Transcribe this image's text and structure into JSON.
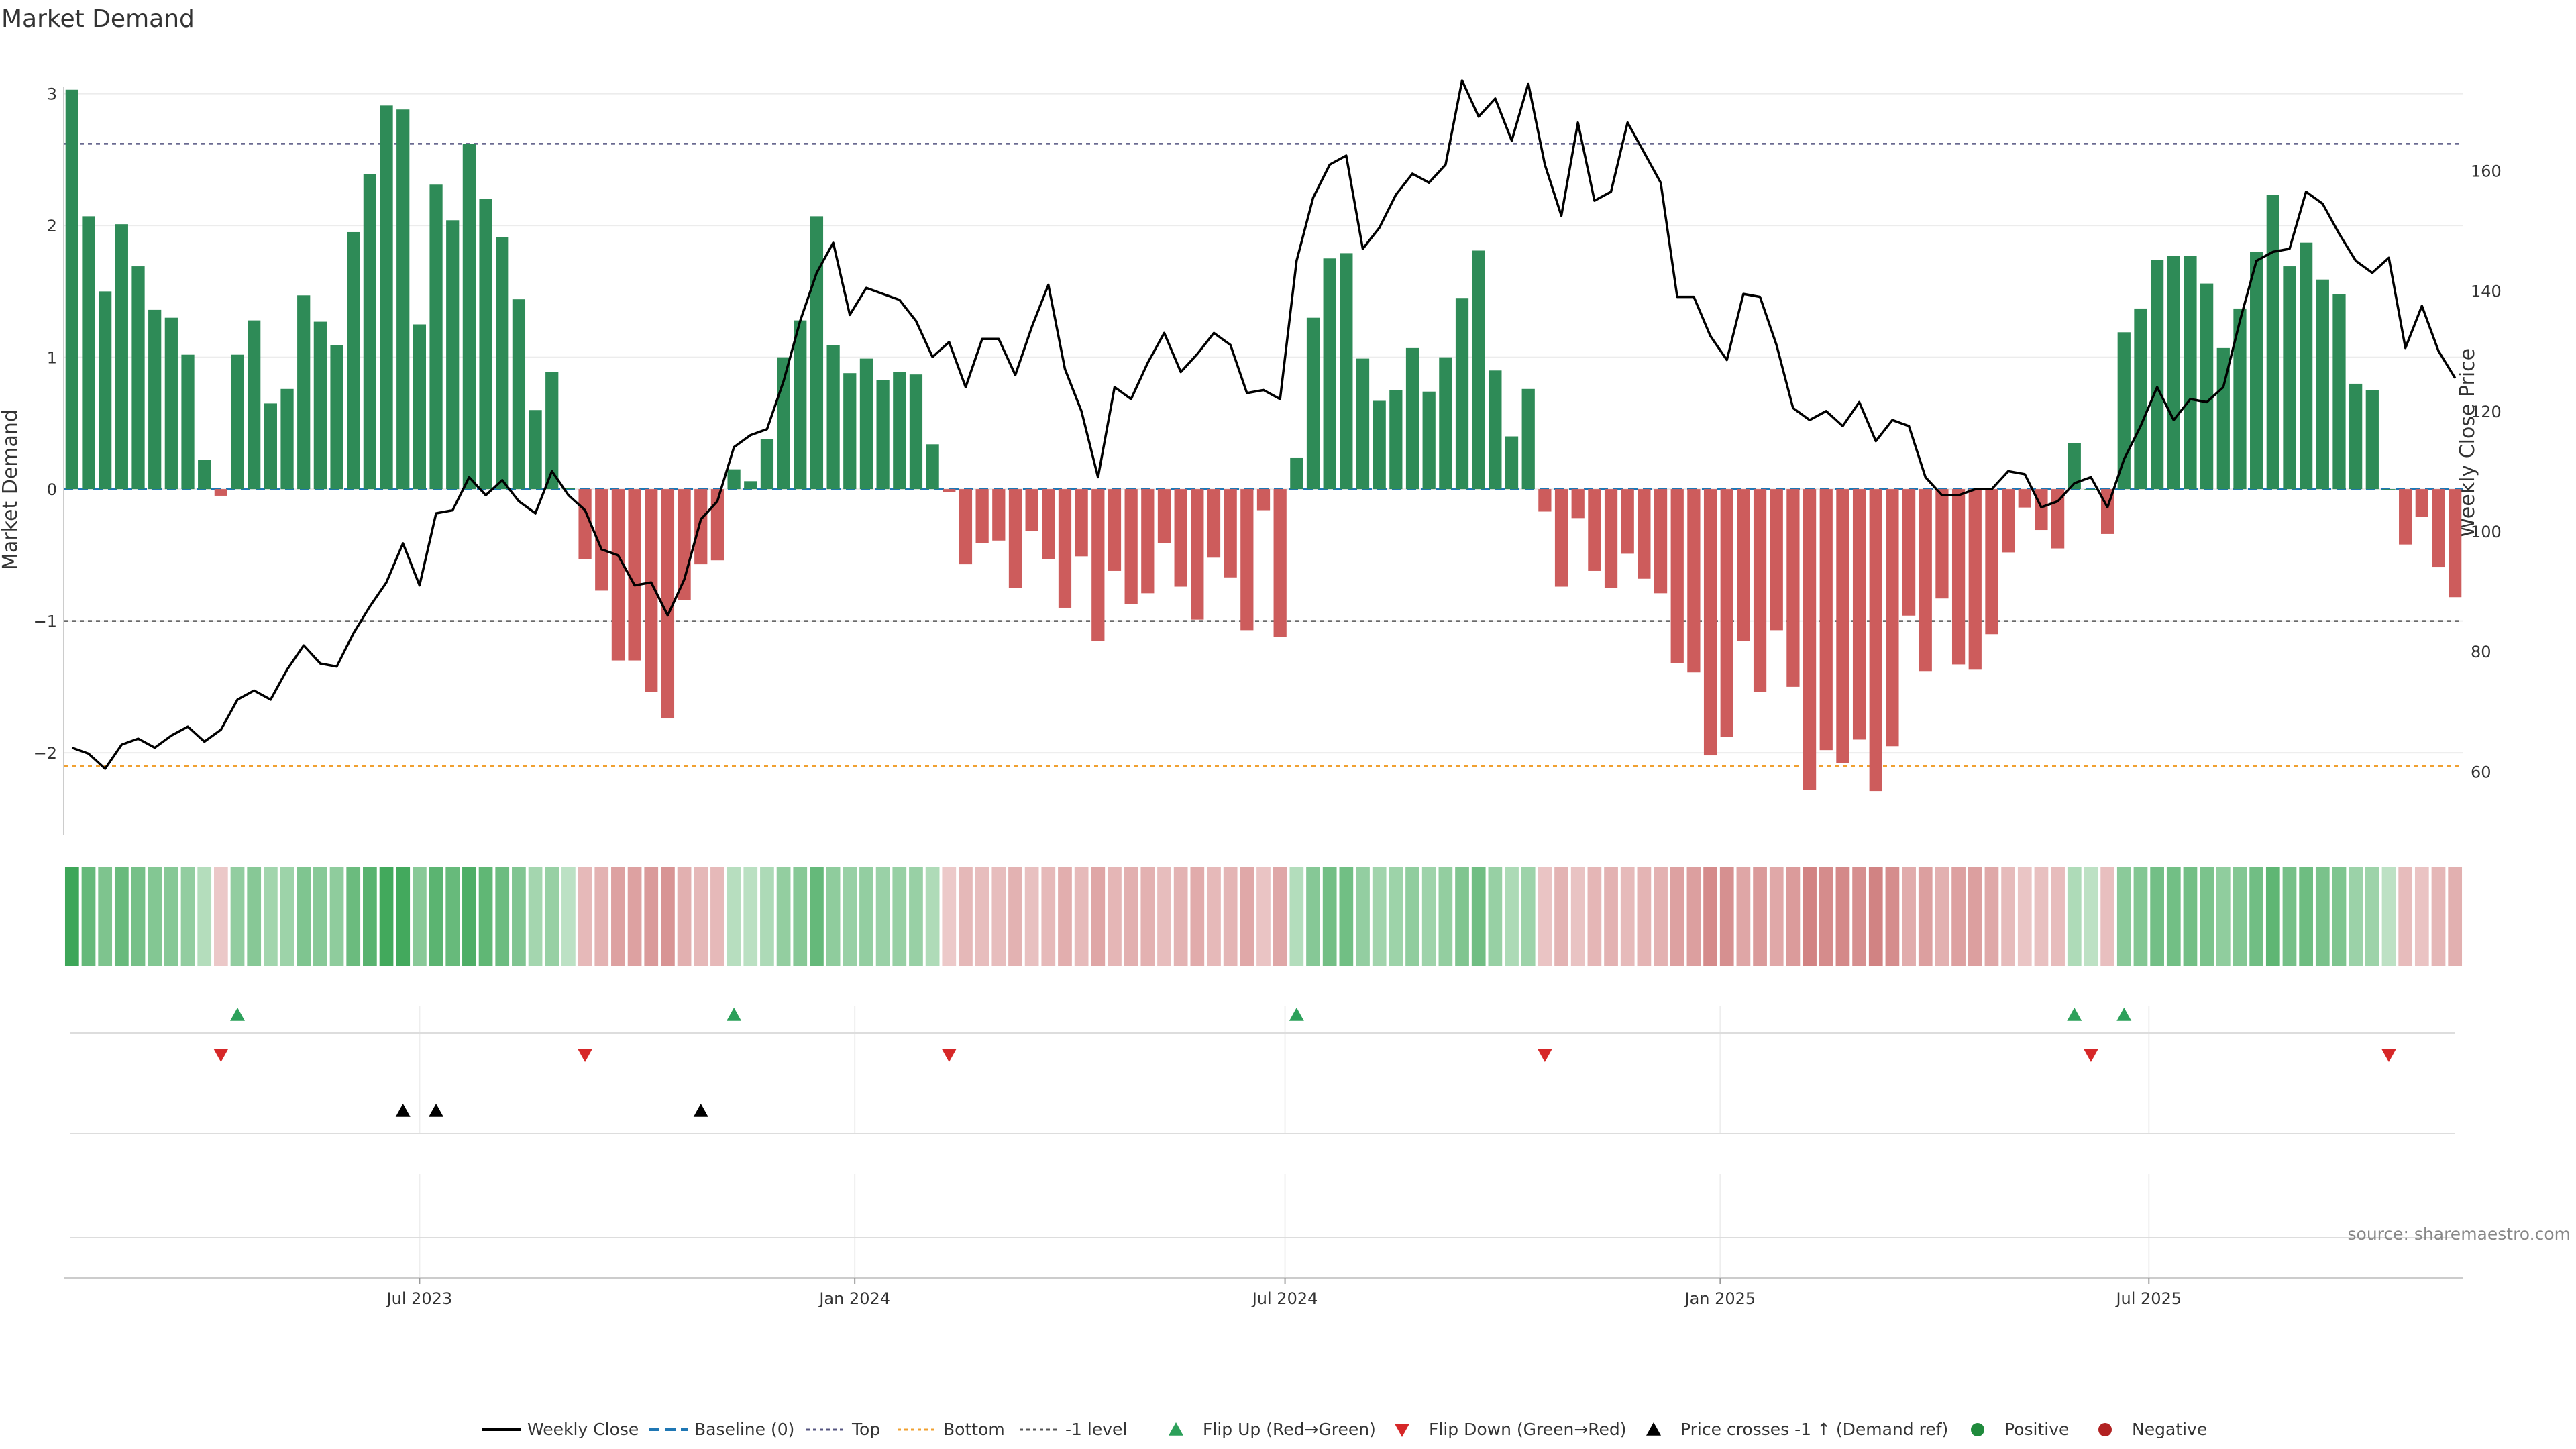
{
  "chart_data": {
    "type": "bar",
    "title": "Market Demand",
    "ylabel": "Market Demand",
    "y2label": "Weekly Close Price",
    "ylim": [
      -2.6,
      3.1
    ],
    "y2lim": [
      50,
      175
    ],
    "y_ticks": [
      -2,
      -1,
      0,
      1,
      2,
      3
    ],
    "y_tick_labels": [
      "−2",
      "−1",
      "0",
      "1",
      "2",
      "3"
    ],
    "y2_ticks": [
      60,
      80,
      100,
      120,
      140,
      160
    ],
    "y2_tick_labels": [
      "60",
      "80",
      "100",
      "120",
      "140",
      "160"
    ],
    "grid": true,
    "x_ticks": [
      {
        "index": 21.5,
        "label": "Jul 2023"
      },
      {
        "index": 47.8,
        "label": "Jan 2024"
      },
      {
        "index": 73.8,
        "label": "Jul 2024"
      },
      {
        "index": 100.1,
        "label": "Jan 2025"
      },
      {
        "index": 126.0,
        "label": "Jul 2025"
      }
    ],
    "reference_lines": {
      "top": 2.62,
      "bottom": -2.1,
      "minus_one": -1.0,
      "baseline": 0
    },
    "demand": [
      3.03,
      2.07,
      1.5,
      2.01,
      1.69,
      1.36,
      1.3,
      1.02,
      0.22,
      -0.05,
      1.02,
      1.28,
      0.65,
      0.76,
      1.47,
      1.27,
      1.09,
      1.95,
      2.39,
      2.91,
      2.88,
      1.25,
      2.31,
      2.04,
      2.62,
      2.2,
      1.91,
      1.44,
      0.6,
      0.89,
      0.01,
      -0.53,
      -0.77,
      -1.3,
      -1.3,
      -1.54,
      -1.74,
      -0.84,
      -0.57,
      -0.54,
      0.15,
      0.06,
      0.38,
      1.0,
      1.28,
      2.07,
      1.09,
      0.88,
      0.99,
      0.83,
      0.89,
      0.87,
      0.34,
      -0.02,
      -0.57,
      -0.41,
      -0.39,
      -0.75,
      -0.32,
      -0.53,
      -0.9,
      -0.51,
      -1.15,
      -0.62,
      -0.87,
      -0.79,
      -0.41,
      -0.74,
      -0.99,
      -0.52,
      -0.67,
      -1.07,
      -0.16,
      -1.12,
      0.24,
      1.3,
      1.75,
      1.79,
      0.99,
      0.67,
      0.75,
      1.07,
      0.74,
      1.0,
      1.45,
      1.81,
      0.9,
      0.4,
      0.76,
      -0.17,
      -0.74,
      -0.22,
      -0.62,
      -0.75,
      -0.49,
      -0.68,
      -0.79,
      -1.32,
      -1.39,
      -2.02,
      -1.88,
      -1.15,
      -1.54,
      -1.07,
      -1.5,
      -2.28,
      -1.98,
      -2.08,
      -1.9,
      -2.29,
      -1.95,
      -0.96,
      -1.38,
      -0.83,
      -1.33,
      -1.37,
      -1.1,
      -0.48,
      -0.14,
      -0.31,
      -0.45,
      0.35,
      0.0,
      -0.34,
      1.19,
      1.37,
      1.74,
      1.77,
      1.77,
      1.56,
      1.07,
      1.37,
      1.8,
      2.23,
      1.69,
      1.87,
      1.59,
      1.48,
      0.8,
      0.75,
      0.0,
      -0.42,
      -0.21,
      -0.59,
      -0.82
    ],
    "weekly_close": [
      [
        0,
        64
      ],
      [
        1,
        63
      ],
      [
        2,
        60.5
      ],
      [
        3,
        64.5
      ],
      [
        4,
        65.5
      ],
      [
        5,
        64
      ],
      [
        6,
        66
      ],
      [
        7,
        67.5
      ],
      [
        8,
        65
      ],
      [
        9,
        67
      ],
      [
        10,
        72
      ],
      [
        11,
        73.5
      ],
      [
        12,
        72
      ],
      [
        13,
        77
      ],
      [
        14,
        81
      ],
      [
        15,
        78
      ],
      [
        16,
        77.5
      ],
      [
        17,
        83
      ],
      [
        18,
        87.5
      ],
      [
        19,
        91.5
      ],
      [
        20,
        98
      ],
      [
        21,
        91
      ],
      [
        22,
        103
      ],
      [
        23,
        103.5
      ],
      [
        24,
        109
      ],
      [
        25,
        106
      ],
      [
        26,
        108.5
      ],
      [
        27,
        105
      ],
      [
        28,
        103
      ],
      [
        29,
        110
      ],
      [
        30,
        106
      ],
      [
        31,
        103.5
      ],
      [
        32,
        97
      ],
      [
        33,
        96
      ],
      [
        34,
        91
      ],
      [
        35,
        91.5
      ],
      [
        36,
        86
      ],
      [
        37,
        92
      ],
      [
        38,
        102
      ],
      [
        39,
        105
      ],
      [
        40,
        114
      ],
      [
        41,
        116
      ],
      [
        42,
        117
      ],
      [
        43,
        125
      ],
      [
        44,
        135
      ],
      [
        45,
        143
      ],
      [
        46,
        148
      ],
      [
        47,
        136
      ],
      [
        48,
        140.5
      ],
      [
        49,
        139.5
      ],
      [
        50,
        138.5
      ],
      [
        51,
        135
      ],
      [
        52,
        129
      ],
      [
        53,
        131.5
      ],
      [
        54,
        124
      ],
      [
        55,
        132
      ],
      [
        56,
        132
      ],
      [
        57,
        126
      ],
      [
        58,
        134
      ],
      [
        59,
        141
      ],
      [
        60,
        127
      ],
      [
        61,
        120
      ],
      [
        62,
        109
      ],
      [
        63,
        124
      ],
      [
        64,
        122
      ],
      [
        65,
        128
      ],
      [
        66,
        133
      ],
      [
        67,
        126.5
      ],
      [
        68,
        129.5
      ],
      [
        69,
        133
      ],
      [
        70,
        131
      ],
      [
        71,
        123
      ],
      [
        72,
        123.5
      ],
      [
        73,
        122
      ],
      [
        74,
        145
      ],
      [
        75,
        155.5
      ],
      [
        76,
        161
      ],
      [
        77,
        162.5
      ],
      [
        78,
        147
      ],
      [
        79,
        150.5
      ],
      [
        80,
        156
      ],
      [
        81,
        159.5
      ],
      [
        82,
        158
      ],
      [
        83,
        161
      ],
      [
        84,
        175
      ],
      [
        85,
        169
      ],
      [
        86,
        172
      ],
      [
        87,
        165
      ],
      [
        88,
        174.5
      ],
      [
        89,
        161
      ],
      [
        90,
        152.5
      ],
      [
        91,
        168
      ],
      [
        92,
        155
      ],
      [
        93,
        156.5
      ],
      [
        94,
        168
      ],
      [
        95,
        163
      ],
      [
        96,
        158
      ],
      [
        97,
        139
      ],
      [
        98,
        139
      ],
      [
        99,
        132.5
      ],
      [
        100,
        128.5
      ],
      [
        101,
        139.5
      ],
      [
        102,
        139
      ],
      [
        103,
        131
      ],
      [
        104,
        120.5
      ],
      [
        105,
        118.5
      ],
      [
        106,
        120
      ],
      [
        107,
        117.5
      ],
      [
        108,
        121.5
      ],
      [
        109,
        115
      ],
      [
        110,
        118.5
      ],
      [
        111,
        117.5
      ],
      [
        112,
        109
      ],
      [
        113,
        106
      ],
      [
        114,
        106
      ],
      [
        115,
        107
      ],
      [
        116,
        107
      ],
      [
        117,
        110
      ],
      [
        118,
        109.5
      ],
      [
        119,
        104
      ],
      [
        120,
        105
      ],
      [
        121,
        108
      ],
      [
        122,
        109
      ],
      [
        123,
        104
      ],
      [
        124,
        112
      ],
      [
        125,
        117.5
      ],
      [
        126,
        124
      ],
      [
        127,
        118.5
      ],
      [
        128,
        122
      ],
      [
        129,
        121.5
      ],
      [
        130,
        124
      ],
      [
        131,
        135
      ],
      [
        132,
        145
      ],
      [
        133,
        146.5
      ],
      [
        134,
        147
      ],
      [
        135,
        156.5
      ],
      [
        136,
        154.5
      ],
      [
        137,
        149.5
      ],
      [
        138,
        145
      ],
      [
        139,
        143
      ],
      [
        140,
        145.5
      ],
      [
        141,
        130.5
      ],
      [
        142,
        137.5
      ],
      [
        143,
        130
      ],
      [
        144,
        125.5
      ]
    ],
    "heat_strip": [
      3.03,
      2.07,
      1.5,
      2.01,
      1.69,
      1.36,
      1.3,
      1.02,
      0.22,
      -0.05,
      1.02,
      1.28,
      0.65,
      0.76,
      1.47,
      1.27,
      1.09,
      1.95,
      2.39,
      2.91,
      2.88,
      1.25,
      2.31,
      2.04,
      2.62,
      2.2,
      1.91,
      1.44,
      0.6,
      0.89,
      0.01,
      -0.53,
      -0.77,
      -1.3,
      -1.3,
      -1.54,
      -1.74,
      -0.84,
      -0.57,
      -0.54,
      0.15,
      0.06,
      0.38,
      1.0,
      1.28,
      2.07,
      1.09,
      0.88,
      0.99,
      0.83,
      0.89,
      0.87,
      0.34,
      -0.02,
      -0.57,
      -0.41,
      -0.39,
      -0.75,
      -0.32,
      -0.53,
      -0.9,
      -0.51,
      -1.15,
      -0.62,
      -0.87,
      -0.79,
      -0.41,
      -0.74,
      -0.99,
      -0.52,
      -0.67,
      -1.07,
      -0.16,
      -1.12,
      0.24,
      1.3,
      1.75,
      1.79,
      0.99,
      0.67,
      0.75,
      1.07,
      0.74,
      1.0,
      1.45,
      1.81,
      0.9,
      0.4,
      0.76,
      -0.17,
      -0.74,
      -0.22,
      -0.62,
      -0.75,
      -0.49,
      -0.68,
      -0.79,
      -1.32,
      -1.39,
      -2.02,
      -1.88,
      -1.15,
      -1.54,
      -1.07,
      -1.5,
      -2.28,
      -1.98,
      -2.08,
      -1.9,
      -2.29,
      -1.95,
      -0.96,
      -1.38,
      -0.83,
      -1.33,
      -1.37,
      -1.1,
      -0.48,
      -0.14,
      -0.31,
      -0.45,
      0.35,
      0.0,
      -0.34,
      1.19,
      1.37,
      1.74,
      1.77,
      1.77,
      1.56,
      1.07,
      1.37,
      1.8,
      2.23,
      1.69,
      1.87,
      1.59,
      1.48,
      0.8,
      0.75,
      0.0,
      -0.42,
      -0.21,
      -0.59,
      -0.82
    ],
    "events": {
      "flip_up": [
        10,
        40,
        74,
        121,
        124
      ],
      "flip_down": [
        9,
        31,
        53,
        89,
        122,
        140
      ],
      "price_crosses_minus_one_up": [
        20,
        22,
        38
      ]
    },
    "legend": {
      "position": "bottom",
      "entries": [
        {
          "label": "Weekly Close",
          "symbol": "line",
          "color": "#000000"
        },
        {
          "label": "Baseline (0)",
          "symbol": "dash",
          "color": "#1f77b4"
        },
        {
          "label": "Top",
          "symbol": "dotline",
          "color": "#555580"
        },
        {
          "label": "Bottom",
          "symbol": "dotline",
          "color": "#f0a030"
        },
        {
          "label": "-1 level",
          "symbol": "dotline",
          "color": "#555555"
        },
        {
          "label": "Flip Up (Red→Green)",
          "symbol": "tri-up",
          "color": "#2ca05a"
        },
        {
          "label": "Flip Down (Green→Red)",
          "symbol": "tri-down",
          "color": "#d62728"
        },
        {
          "label": "Price crosses -1 ↑ (Demand ref)",
          "symbol": "tri-up",
          "color": "#000000"
        },
        {
          "label": "Positive",
          "symbol": "dot",
          "color": "#1f8a3c"
        },
        {
          "label": "Negative",
          "symbol": "dot",
          "color": "#b22222"
        }
      ]
    },
    "source": "source: sharemaestro.com",
    "colors": {
      "positive_bar": "#2e8b57",
      "negative_bar": "#cd5c5c",
      "price_line": "#000000",
      "baseline": "#1f77b4",
      "top_line": "#555580",
      "bottom_line": "#f0a030",
      "minus_one_line": "#555555",
      "flip_up": "#2ca05a",
      "flip_down": "#d62728",
      "cross_marker": "#000000"
    }
  }
}
